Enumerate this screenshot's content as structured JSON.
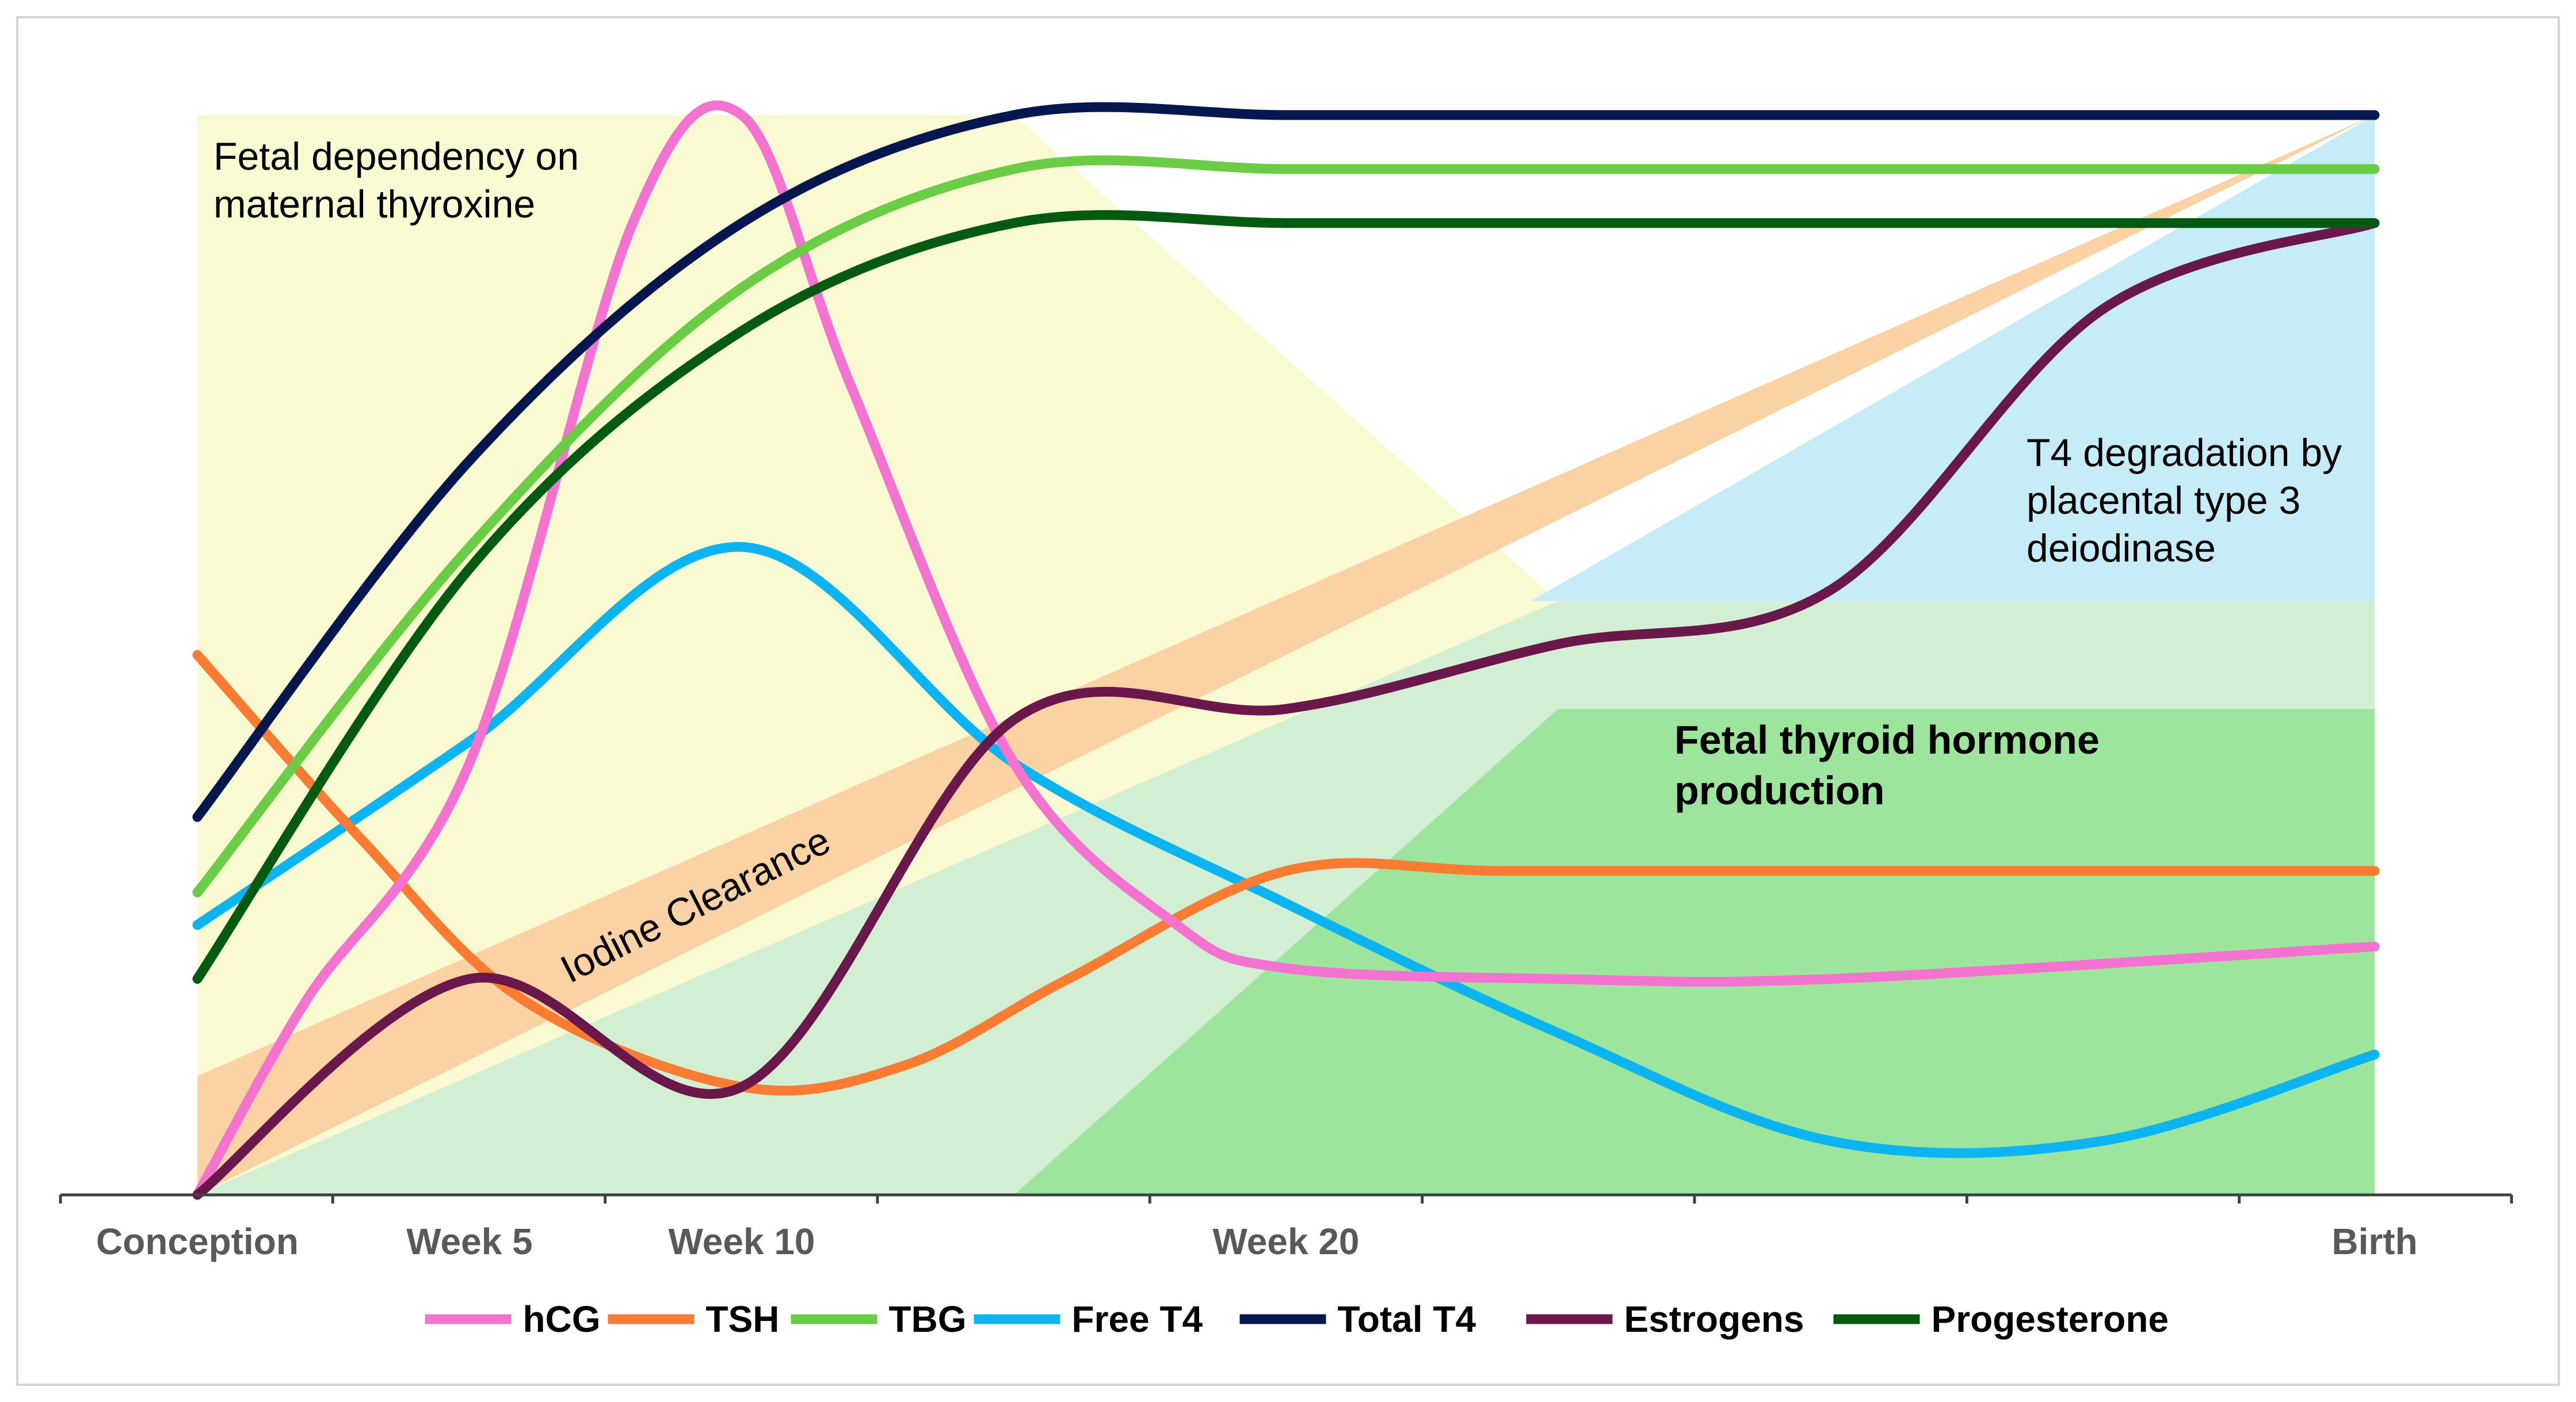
{
  "chart_data": {
    "type": "line",
    "title": "",
    "xlabel": "",
    "ylabel": "",
    "x_ticks": [
      "Conception",
      "Week 5",
      "Week 10",
      "Week 20",
      "Birth"
    ],
    "x_tick_positions": [
      0,
      5,
      10,
      20,
      40
    ],
    "xlim": [
      -2.5,
      42.5
    ],
    "ylim": [
      0,
      100
    ],
    "grid": false,
    "legend_position": "bottom",
    "regions": [
      {
        "name": "fetal-dependency-region",
        "color": "#fafad2",
        "points": [
          [
            0,
            100
          ],
          [
            15,
            100
          ],
          [
            25,
            55
          ],
          [
            40,
            55
          ],
          [
            40,
            0
          ],
          [
            0,
            0
          ]
        ]
      },
      {
        "name": "iodine-clearance-band",
        "color": "#fbd2a4",
        "points": [
          [
            0,
            0
          ],
          [
            40,
            100
          ],
          [
            0,
            11
          ]
        ]
      },
      {
        "name": "placental-deiodinase-region",
        "color": "#c5ecf7",
        "points": [
          [
            25,
            55
          ],
          [
            40,
            55
          ],
          [
            40,
            100
          ],
          [
            24.5,
            55
          ]
        ]
      },
      {
        "name": "fetal-light-green-region",
        "color": "#d3efd3",
        "points": [
          [
            0,
            0
          ],
          [
            25,
            55
          ],
          [
            40,
            55
          ],
          [
            40,
            0
          ]
        ]
      },
      {
        "name": "fetal-production-region",
        "color": "#9de59d",
        "points": [
          [
            15,
            0
          ],
          [
            25,
            45
          ],
          [
            40,
            45
          ],
          [
            40,
            0
          ]
        ]
      }
    ],
    "annotations": [
      {
        "name": "fetal-dependency-text",
        "lines": [
          "Fetal dependency on",
          "maternal thyroxine"
        ]
      },
      {
        "name": "iodine-clearance-text",
        "lines": [
          "Iodine Clearance"
        ]
      },
      {
        "name": "deiodinase-text",
        "lines": [
          "T4 degradation by",
          "placental type 3",
          "deiodinase"
        ]
      },
      {
        "name": "fetal-production-text",
        "lines": [
          "Fetal thyroid hormone",
          "production"
        ]
      }
    ],
    "series": [
      {
        "name": "hCG",
        "color": "#f472d0",
        "x": [
          0,
          2,
          5,
          8,
          10,
          12,
          15,
          18,
          20,
          25,
          30,
          40
        ],
        "y": [
          0,
          18,
          40,
          90,
          100,
          75,
          40,
          25,
          21,
          20,
          20,
          23
        ]
      },
      {
        "name": "TSH",
        "color": "#fa7b32",
        "x": [
          0,
          3,
          6,
          10,
          13,
          16,
          20,
          24,
          30,
          40
        ],
        "y": [
          50,
          33,
          18,
          10,
          12,
          20,
          30,
          30,
          30,
          30
        ]
      },
      {
        "name": "TBG",
        "color": "#6acd45",
        "x": [
          0,
          5,
          10,
          15,
          20,
          25,
          30,
          40
        ],
        "y": [
          28,
          60,
          84,
          95,
          95,
          95,
          95,
          95
        ]
      },
      {
        "name": "Free T4",
        "color": "#0db4f2",
        "x": [
          0,
          5,
          10,
          15,
          20,
          25,
          30,
          35,
          40
        ],
        "y": [
          25,
          42,
          60,
          40,
          27,
          15,
          5,
          5,
          13
        ]
      },
      {
        "name": "Total T4",
        "color": "#06164f",
        "x": [
          0,
          5,
          10,
          15,
          20,
          25,
          30,
          40
        ],
        "y": [
          35,
          68,
          90,
          100,
          100,
          100,
          100,
          100
        ]
      },
      {
        "name": "Estrogens",
        "color": "#6a174b",
        "x": [
          0,
          5,
          10,
          15,
          20,
          25,
          30,
          35,
          40
        ],
        "y": [
          0,
          20,
          10,
          44,
          45,
          51,
          56,
          82,
          90
        ]
      },
      {
        "name": "Progesterone",
        "color": "#045a10",
        "x": [
          0,
          5,
          10,
          15,
          20,
          25,
          30,
          40
        ],
        "y": [
          20,
          58,
          80,
          90,
          90,
          90,
          90,
          90
        ]
      }
    ]
  }
}
